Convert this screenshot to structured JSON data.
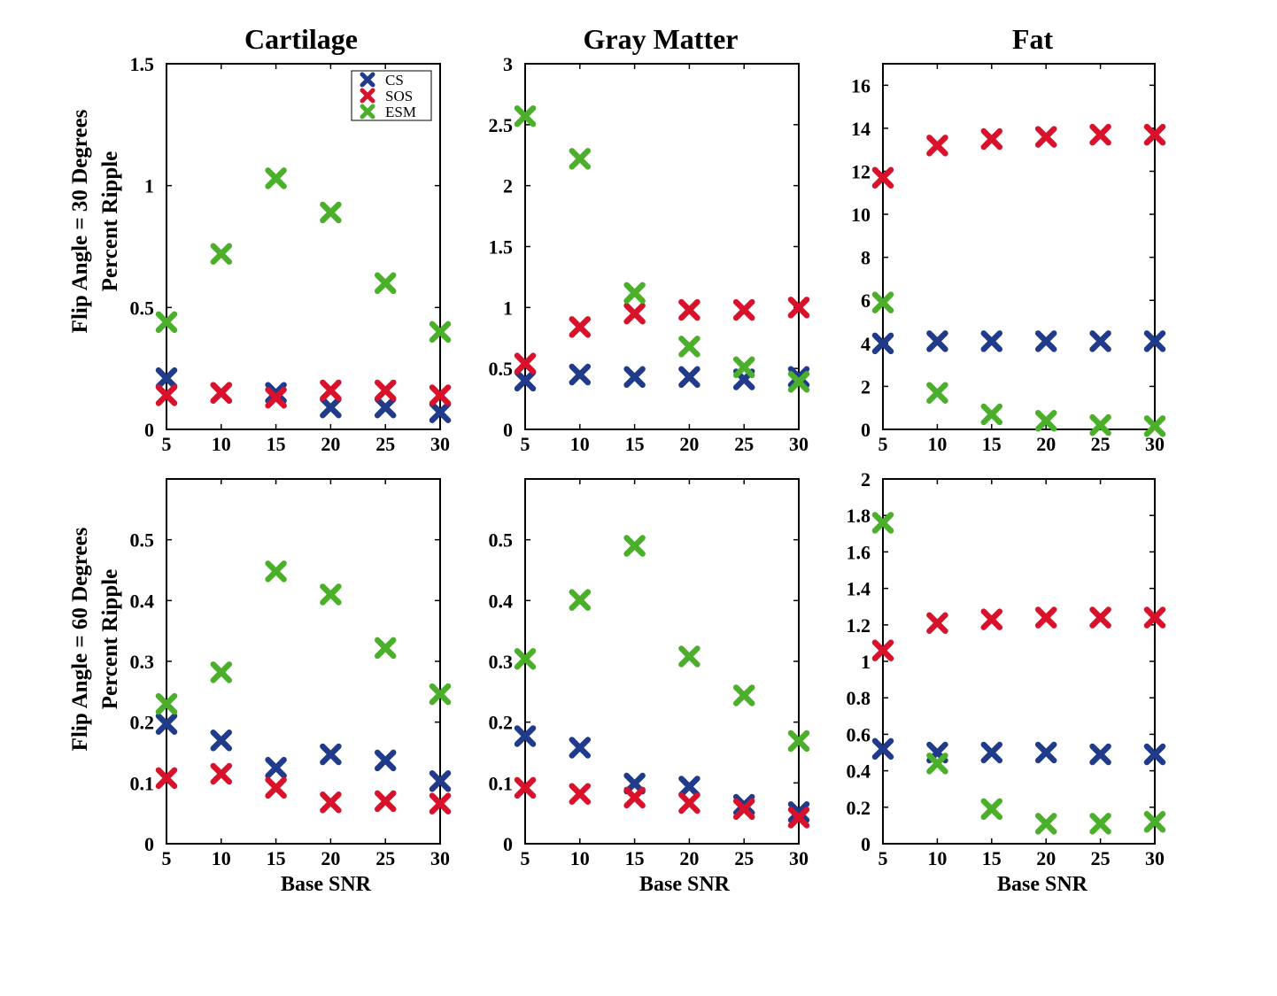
{
  "column_titles": [
    "Cartilage",
    "Gray Matter",
    "Fat"
  ],
  "row_labels": [
    [
      "Flip Angle = 30 Degrees",
      "Percent Ripple"
    ],
    [
      "Flip Angle = 60 Degrees",
      "Percent Ripple"
    ]
  ],
  "colors": {
    "CS": "#1f3b8a",
    "SOS": "#d9122b",
    "ESM": "#4caf2b"
  },
  "legend": [
    "CS",
    "SOS",
    "ESM"
  ],
  "chart_data": [
    {
      "type": "scatter",
      "title": "Cartilage",
      "xlabel": "",
      "ylabel": "",
      "x": [
        5,
        10,
        15,
        20,
        25,
        30
      ],
      "xlim": [
        5,
        30
      ],
      "ylim": [
        0,
        1.5
      ],
      "yticks": [
        "0",
        "0.5",
        "1",
        "1.5"
      ],
      "yticks_values": [
        0,
        0.5,
        1,
        1.5
      ],
      "xticks": [
        "5",
        "10",
        "15",
        "20",
        "25",
        "30"
      ],
      "legend_position": "top-right",
      "series": [
        {
          "name": "CS",
          "values": [
            0.21,
            0.15,
            0.15,
            0.09,
            0.09,
            0.07
          ]
        },
        {
          "name": "SOS",
          "values": [
            0.14,
            0.15,
            0.13,
            0.16,
            0.16,
            0.14
          ]
        },
        {
          "name": "ESM",
          "values": [
            0.44,
            0.72,
            1.03,
            0.89,
            0.6,
            0.4
          ]
        }
      ]
    },
    {
      "type": "scatter",
      "title": "Gray Matter",
      "xlabel": "",
      "ylabel": "",
      "x": [
        5,
        10,
        15,
        20,
        25,
        30
      ],
      "xlim": [
        5,
        30
      ],
      "ylim": [
        0,
        3
      ],
      "yticks": [
        "0",
        "0.5",
        "1",
        "1.5",
        "2",
        "2.5",
        "3"
      ],
      "yticks_values": [
        0,
        0.5,
        1,
        1.5,
        2,
        2.5,
        3
      ],
      "xticks": [
        "5",
        "10",
        "15",
        "20",
        "25",
        "30"
      ],
      "series": [
        {
          "name": "CS",
          "values": [
            0.4,
            0.45,
            0.43,
            0.43,
            0.41,
            0.43
          ]
        },
        {
          "name": "SOS",
          "values": [
            0.54,
            0.84,
            0.95,
            0.98,
            0.98,
            1.0
          ]
        },
        {
          "name": "ESM",
          "values": [
            2.57,
            2.22,
            1.12,
            0.68,
            0.51,
            0.39
          ]
        }
      ]
    },
    {
      "type": "scatter",
      "title": "Fat",
      "xlabel": "",
      "ylabel": "",
      "x": [
        5,
        10,
        15,
        20,
        25,
        30
      ],
      "xlim": [
        5,
        30
      ],
      "ylim": [
        0,
        17
      ],
      "yticks": [
        "0",
        "2",
        "4",
        "6",
        "8",
        "10",
        "12",
        "14",
        "16"
      ],
      "yticks_values": [
        0,
        2,
        4,
        6,
        8,
        10,
        12,
        14,
        16
      ],
      "xticks": [
        "5",
        "10",
        "15",
        "20",
        "25",
        "30"
      ],
      "series": [
        {
          "name": "CS",
          "values": [
            4.0,
            4.1,
            4.1,
            4.1,
            4.1,
            4.1
          ]
        },
        {
          "name": "SOS",
          "values": [
            11.7,
            13.2,
            13.5,
            13.6,
            13.7,
            13.7
          ]
        },
        {
          "name": "ESM",
          "values": [
            5.9,
            1.7,
            0.7,
            0.4,
            0.2,
            0.15
          ]
        }
      ]
    },
    {
      "type": "scatter",
      "title": "",
      "xlabel": "Base SNR",
      "ylabel": "",
      "x": [
        5,
        10,
        15,
        20,
        25,
        30
      ],
      "xlim": [
        5,
        30
      ],
      "ylim": [
        0,
        0.6
      ],
      "yticks": [
        "0",
        "0.1",
        "0.2",
        "0.3",
        "0.4",
        "0.5"
      ],
      "yticks_values": [
        0,
        0.1,
        0.2,
        0.3,
        0.4,
        0.5
      ],
      "xticks": [
        "5",
        "10",
        "15",
        "20",
        "25",
        "30"
      ],
      "series": [
        {
          "name": "CS",
          "values": [
            0.197,
            0.17,
            0.125,
            0.147,
            0.137,
            0.103
          ]
        },
        {
          "name": "SOS",
          "values": [
            0.108,
            0.115,
            0.092,
            0.068,
            0.07,
            0.066
          ]
        },
        {
          "name": "ESM",
          "values": [
            0.23,
            0.282,
            0.448,
            0.41,
            0.322,
            0.246
          ]
        }
      ]
    },
    {
      "type": "scatter",
      "title": "",
      "xlabel": "Base SNR",
      "ylabel": "",
      "x": [
        5,
        10,
        15,
        20,
        25,
        30
      ],
      "xlim": [
        5,
        30
      ],
      "ylim": [
        0,
        0.6
      ],
      "yticks": [
        "0",
        "0.1",
        "0.2",
        "0.3",
        "0.4",
        "0.5"
      ],
      "yticks_values": [
        0,
        0.1,
        0.2,
        0.3,
        0.4,
        0.5
      ],
      "xticks": [
        "5",
        "10",
        "15",
        "20",
        "25",
        "30"
      ],
      "series": [
        {
          "name": "CS",
          "values": [
            0.177,
            0.158,
            0.099,
            0.094,
            0.064,
            0.052
          ]
        },
        {
          "name": "SOS",
          "values": [
            0.092,
            0.082,
            0.076,
            0.067,
            0.057,
            0.043
          ]
        },
        {
          "name": "ESM",
          "values": [
            0.304,
            0.401,
            0.49,
            0.308,
            0.244,
            0.169
          ]
        }
      ]
    },
    {
      "type": "scatter",
      "title": "",
      "xlabel": "Base SNR",
      "ylabel": "",
      "x": [
        5,
        10,
        15,
        20,
        25,
        30
      ],
      "xlim": [
        5,
        30
      ],
      "ylim": [
        0,
        2
      ],
      "yticks": [
        "0",
        "0.2",
        "0.4",
        "0.6",
        "0.8",
        "1",
        "1.2",
        "1.4",
        "1.6",
        "1.8",
        "2"
      ],
      "yticks_values": [
        0,
        0.2,
        0.4,
        0.6,
        0.8,
        1,
        1.2,
        1.4,
        1.6,
        1.8,
        2
      ],
      "xticks": [
        "5",
        "10",
        "15",
        "20",
        "25",
        "30"
      ],
      "series": [
        {
          "name": "CS",
          "values": [
            0.52,
            0.5,
            0.5,
            0.5,
            0.49,
            0.49
          ]
        },
        {
          "name": "SOS",
          "values": [
            1.06,
            1.21,
            1.23,
            1.24,
            1.24,
            1.24
          ]
        },
        {
          "name": "ESM",
          "values": [
            1.76,
            0.44,
            0.19,
            0.11,
            0.11,
            0.12
          ]
        }
      ]
    }
  ]
}
